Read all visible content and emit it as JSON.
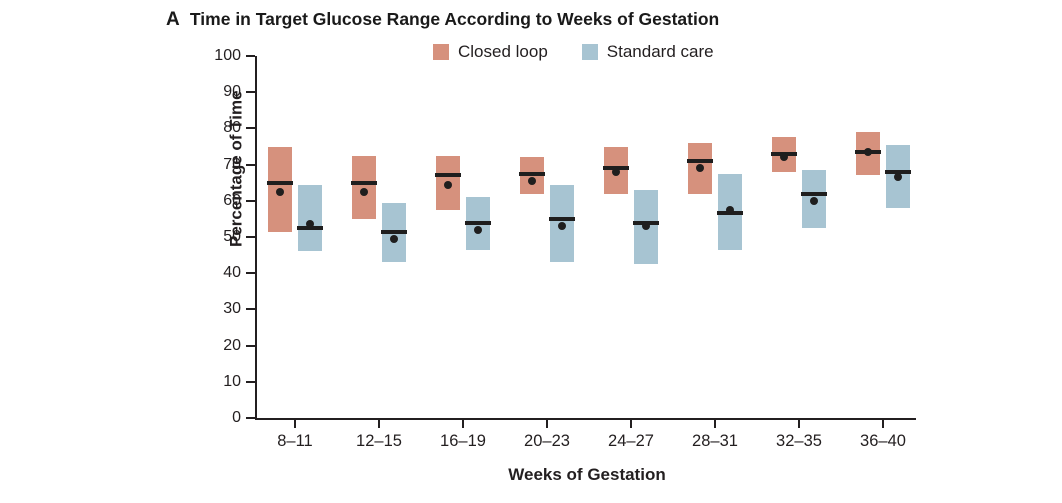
{
  "figure": {
    "panel_label": "A",
    "title": "Time in Target Glucose Range According to Weeks of Gestation",
    "x_axis_label": "Weeks of Gestation",
    "y_axis_label": "Percentage of Time"
  },
  "legend": {
    "items": [
      {
        "label": "Closed loop",
        "color": "#d6917d"
      },
      {
        "label": "Standard care",
        "color": "#a7c4d2"
      }
    ]
  },
  "chart_data": {
    "type": "box",
    "title": "Time in Target Glucose Range According to Weeks of Gestation",
    "xlabel": "Weeks of Gestation",
    "ylabel": "Percentage of Time",
    "ylim": [
      0,
      100
    ],
    "y_ticks": [
      0,
      10,
      20,
      30,
      40,
      50,
      60,
      70,
      80,
      90,
      100
    ],
    "grid": false,
    "legend_position": "top",
    "categories": [
      "8–11",
      "12–15",
      "16–19",
      "20–23",
      "24–27",
      "28–31",
      "32–35",
      "36–40"
    ],
    "series": [
      {
        "name": "Closed loop",
        "color": "#d6917d",
        "boxes": [
          {
            "q1": 51.5,
            "median": 65.0,
            "mean": 62.5,
            "q3": 75.0
          },
          {
            "q1": 55.0,
            "median": 65.0,
            "mean": 62.5,
            "q3": 72.5
          },
          {
            "q1": 57.5,
            "median": 67.0,
            "mean": 64.5,
            "q3": 72.5
          },
          {
            "q1": 62.0,
            "median": 67.5,
            "mean": 65.5,
            "q3": 72.0
          },
          {
            "q1": 62.0,
            "median": 69.0,
            "mean": 68.0,
            "q3": 75.0
          },
          {
            "q1": 62.0,
            "median": 71.0,
            "mean": 69.0,
            "q3": 76.0
          },
          {
            "q1": 68.0,
            "median": 73.0,
            "mean": 72.0,
            "q3": 77.5
          },
          {
            "q1": 67.0,
            "median": 73.5,
            "mean": 73.5,
            "q3": 79.0
          }
        ]
      },
      {
        "name": "Standard care",
        "color": "#a7c4d2",
        "boxes": [
          {
            "q1": 46.0,
            "median": 52.5,
            "mean": 53.5,
            "q3": 64.5
          },
          {
            "q1": 43.0,
            "median": 51.5,
            "mean": 49.5,
            "q3": 59.5
          },
          {
            "q1": 46.5,
            "median": 54.0,
            "mean": 52.0,
            "q3": 61.0
          },
          {
            "q1": 43.0,
            "median": 55.0,
            "mean": 53.0,
            "q3": 64.5
          },
          {
            "q1": 42.5,
            "median": 54.0,
            "mean": 53.0,
            "q3": 63.0
          },
          {
            "q1": 46.5,
            "median": 56.5,
            "mean": 57.5,
            "q3": 67.5
          },
          {
            "q1": 52.5,
            "median": 62.0,
            "mean": 60.0,
            "q3": 68.5
          },
          {
            "q1": 58.0,
            "median": 68.0,
            "mean": 66.5,
            "q3": 75.5
          }
        ]
      }
    ]
  }
}
